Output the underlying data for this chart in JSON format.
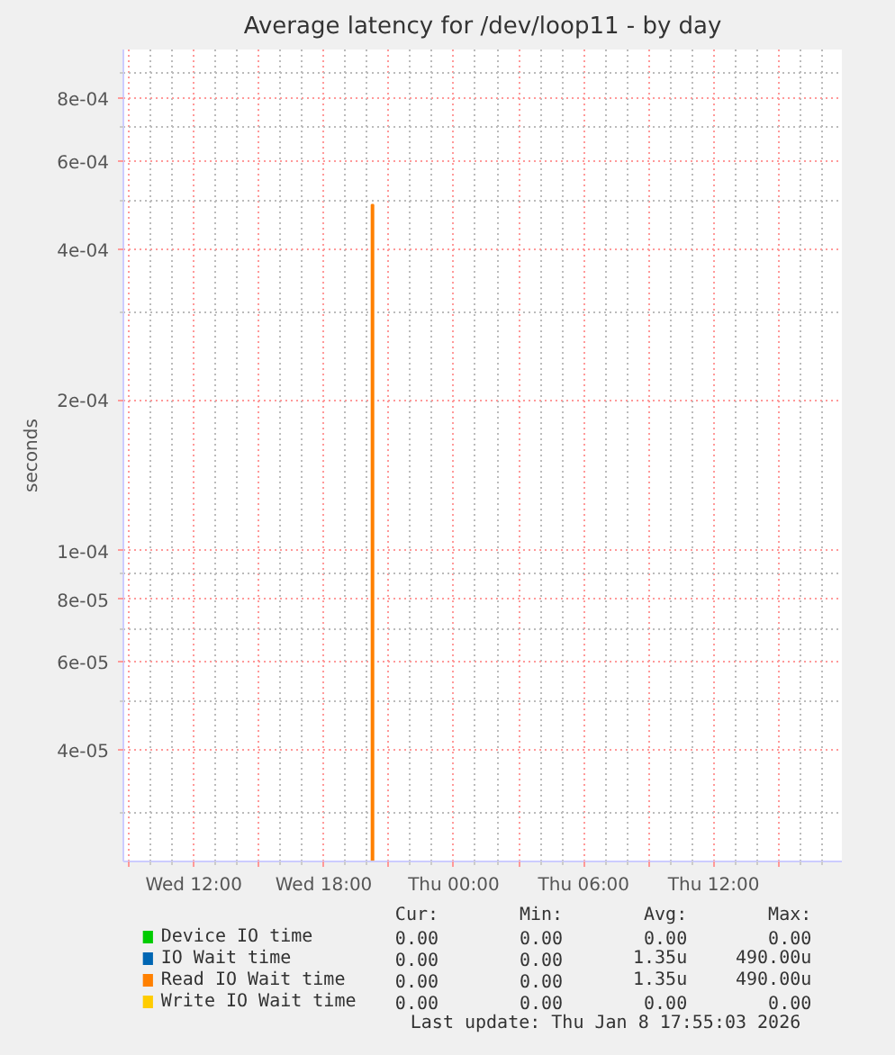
{
  "chart_data": {
    "type": "bar",
    "title": "Average latency for /dev/loop11 - by day",
    "ylabel": "seconds",
    "x": [
      "2026-01-07T20:15"
    ],
    "series": [
      {
        "name": "Device IO time",
        "color": "#00cc00",
        "values": [
          null
        ]
      },
      {
        "name": "IO Wait time",
        "color": "#0066b3",
        "values": [
          null
        ]
      },
      {
        "name": "Read IO Wait time",
        "color": "#ff8000",
        "values": [
          0.00049
        ]
      },
      {
        "name": "Write IO Wait time",
        "color": "#ffcc00",
        "values": [
          null
        ]
      }
    ],
    "log": "y",
    "ylim": [
      2.4e-05,
      0.001
    ],
    "yticks": [
      {
        "value": 0.0008,
        "label": "8e-04"
      },
      {
        "value": 0.0006,
        "label": "6e-04"
      },
      {
        "value": 0.0004,
        "label": "4e-04"
      },
      {
        "value": 0.0002,
        "label": "2e-04"
      },
      {
        "value": 0.0001,
        "label": "1e-04"
      },
      {
        "value": 8e-05,
        "label": "8e-05"
      },
      {
        "value": 6e-05,
        "label": "6e-05"
      },
      {
        "value": 4e-05,
        "label": "4e-05"
      },
      {
        "value": 0.0009,
        "label": null
      },
      {
        "value": 0.0007,
        "label": null
      },
      {
        "value": 0.0005,
        "label": null
      },
      {
        "value": 0.0003,
        "label": null
      },
      {
        "value": 9e-05,
        "label": null
      },
      {
        "value": 7e-05,
        "label": null
      },
      {
        "value": 5e-05,
        "label": null
      },
      {
        "value": 3e-05,
        "label": null
      }
    ],
    "xlim": [
      "2026-01-07T08:45",
      "2026-01-08T17:55"
    ],
    "xticks": [
      {
        "value": "2026-01-07T09:00",
        "label": null
      },
      {
        "value": "2026-01-07T12:00",
        "label": "Wed 12:00"
      },
      {
        "value": "2026-01-07T15:00",
        "label": null
      },
      {
        "value": "2026-01-07T18:00",
        "label": "Wed 18:00"
      },
      {
        "value": "2026-01-07T21:00",
        "label": null
      },
      {
        "value": "2026-01-08T00:00",
        "label": "Thu 00:00"
      },
      {
        "value": "2026-01-08T03:00",
        "label": null
      },
      {
        "value": "2026-01-08T06:00",
        "label": "Thu 06:00"
      },
      {
        "value": "2026-01-08T09:00",
        "label": null
      },
      {
        "value": "2026-01-08T12:00",
        "label": "Thu 12:00"
      },
      {
        "value": "2026-01-08T15:00",
        "label": null
      }
    ],
    "grid": true,
    "legend": "bottom",
    "annotations": [
      "Cur:",
      "Min:",
      "Avg:",
      "Max:",
      "0.00",
      "0.00",
      "0.00",
      "0.00",
      "0.00",
      "0.00",
      "1.35u",
      "490.00u",
      "0.00",
      "0.00",
      "1.35u",
      "490.00u",
      "0.00",
      "0.00",
      "0.00",
      "0.00",
      "Last update: Thu Jan  8 17:55:03 2026"
    ]
  }
}
